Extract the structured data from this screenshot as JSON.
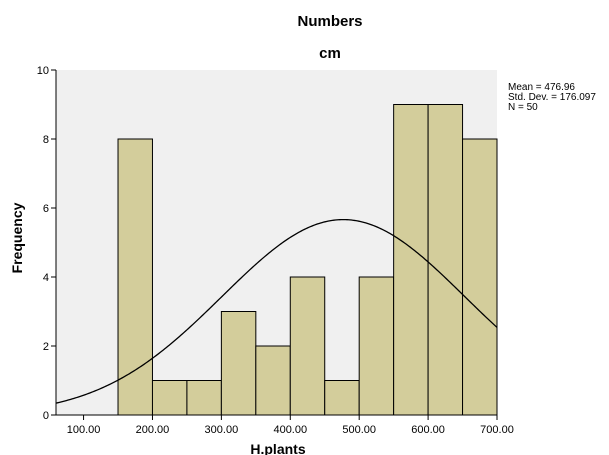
{
  "chart_data": {
    "type": "bar",
    "title": "Numbers",
    "subtitle": "cm",
    "xlabel": "H.plants",
    "ylabel": "Frequency",
    "xlim": [
      60,
      700
    ],
    "ylim": [
      0,
      10
    ],
    "x_ticks": [
      100,
      200,
      300,
      400,
      500,
      600,
      700
    ],
    "x_tick_labels": [
      "100.00",
      "200.00",
      "300.00",
      "400.00",
      "500.00",
      "600.00",
      "700.00"
    ],
    "y_ticks": [
      0,
      2,
      4,
      6,
      8,
      10
    ],
    "y_tick_labels": [
      "0",
      "2",
      "4",
      "6",
      "8",
      "10"
    ],
    "bins": [
      {
        "start": 150,
        "end": 200,
        "count": 8
      },
      {
        "start": 200,
        "end": 250,
        "count": 1
      },
      {
        "start": 250,
        "end": 300,
        "count": 1
      },
      {
        "start": 300,
        "end": 350,
        "count": 3
      },
      {
        "start": 350,
        "end": 400,
        "count": 2
      },
      {
        "start": 400,
        "end": 450,
        "count": 4
      },
      {
        "start": 450,
        "end": 500,
        "count": 1
      },
      {
        "start": 500,
        "end": 550,
        "count": 4
      },
      {
        "start": 550,
        "end": 600,
        "count": 9
      },
      {
        "start": 600,
        "end": 650,
        "count": 9
      },
      {
        "start": 650,
        "end": 700,
        "count": 8
      }
    ],
    "normal_curve": {
      "mean": 476.96,
      "std_dev": 176.097,
      "n": 50,
      "bin_width": 50
    },
    "stats_labels": [
      "Mean = 476.96",
      "Std. Dev. = 176.097",
      "N = 50"
    ],
    "grid": false,
    "colors": {
      "bar_fill": "#d3cd9b",
      "bar_stroke": "#000000",
      "plot_bg": "#f0f0f0",
      "curve": "#000000"
    }
  }
}
